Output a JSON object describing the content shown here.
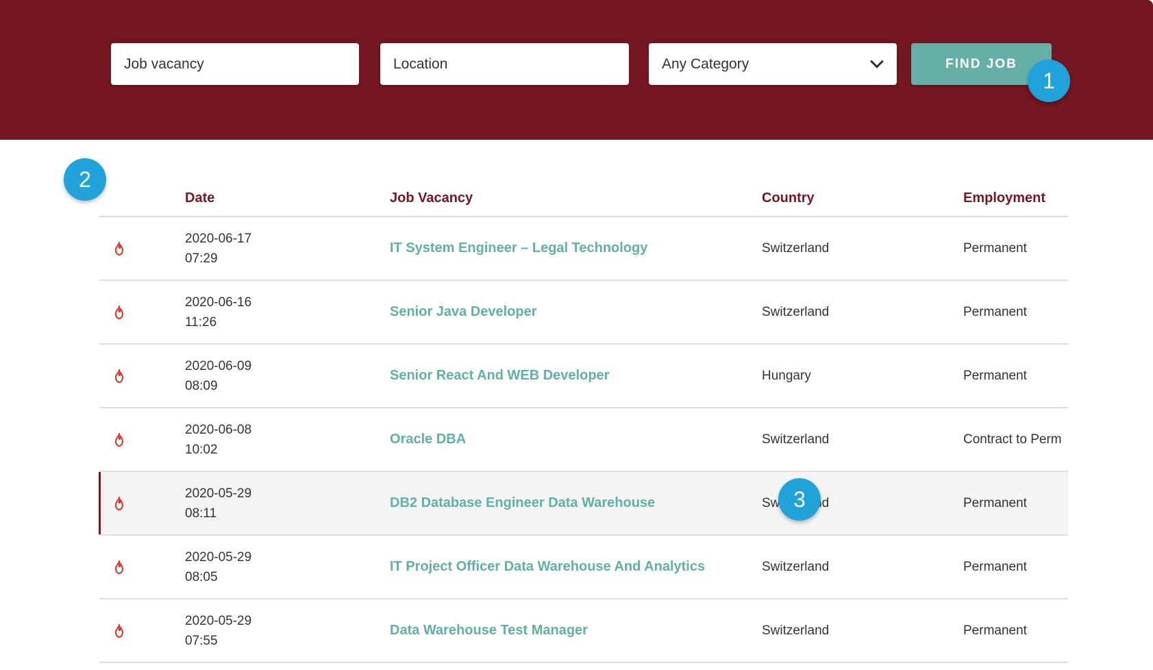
{
  "search": {
    "keyword_placeholder": "Job vacancy",
    "location_placeholder": "Location",
    "category_selected": "Any Category",
    "find_label": "FIND JOB"
  },
  "markers": [
    "1",
    "2",
    "3"
  ],
  "table": {
    "headers": {
      "date": "Date",
      "job": "Job Vacancy",
      "country": "Country",
      "employment": "Employment"
    },
    "rows": [
      {
        "date": "2020-06-17",
        "time": "07:29",
        "title": "IT System Engineer – Legal Technology",
        "country": "Switzerland",
        "employment": "Permanent"
      },
      {
        "date": "2020-06-16",
        "time": "11:26",
        "title": "Senior Java Developer",
        "country": "Switzerland",
        "employment": "Permanent"
      },
      {
        "date": "2020-06-09",
        "time": "08:09",
        "title": "Senior React And WEB Developer",
        "country": "Hungary",
        "employment": "Permanent"
      },
      {
        "date": "2020-06-08",
        "time": "10:02",
        "title": "Oracle DBA",
        "country": "Switzerland",
        "employment": "Contract to Perm"
      },
      {
        "date": "2020-05-29",
        "time": "08:11",
        "title": "DB2 Database Engineer Data Warehouse",
        "country": "Switzerland",
        "employment": "Permanent"
      },
      {
        "date": "2020-05-29",
        "time": "08:05",
        "title": "IT Project Officer Data Warehouse And Analytics",
        "country": "Switzerland",
        "employment": "Permanent"
      },
      {
        "date": "2020-05-29",
        "time": "07:55",
        "title": "Data Warehouse Test Manager",
        "country": "Switzerland",
        "employment": "Permanent"
      }
    ]
  },
  "icons": {
    "hot": "fire-icon",
    "dropdown": "chevron-down-icon"
  },
  "colors": {
    "hero": "#731621",
    "accent": "#66afa7",
    "header_text": "#7a1522",
    "marker": "#1fa3da",
    "hot_icon": "#e03a2f"
  }
}
